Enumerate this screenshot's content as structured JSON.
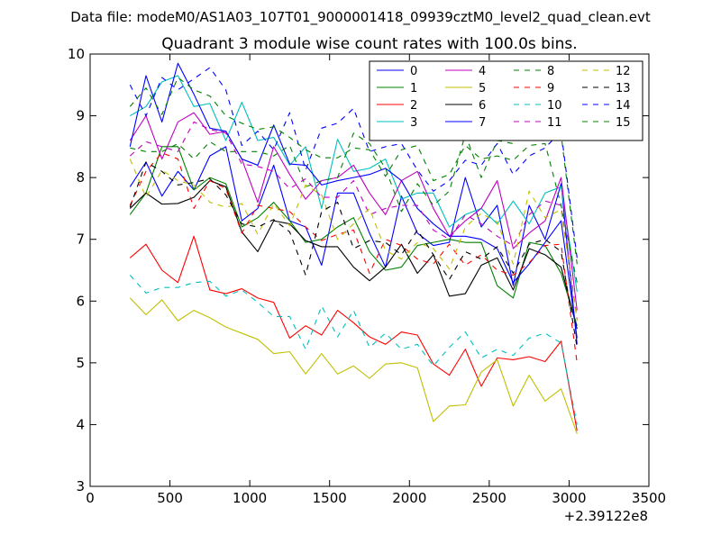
{
  "suptitle": "Data file: modeM0/AS1A03_107T01_9000001418_09939cztM0_level2_quad_clean.evt",
  "chart_data": {
    "type": "line",
    "title": "Quadrant 3 module wise count rates with 100.0s bins.",
    "xlabel": "",
    "ylabel": "",
    "x_offset_label": "+2.39122e8",
    "xlim": [
      0,
      3500
    ],
    "ylim": [
      3,
      10
    ],
    "xticks": [
      0,
      500,
      1000,
      1500,
      2000,
      2500,
      3000,
      3500
    ],
    "yticks": [
      3,
      4,
      5,
      6,
      7,
      8,
      9,
      10
    ],
    "legend_position": "top-right",
    "legend_columns": 4,
    "x": [
      250,
      350,
      450,
      550,
      650,
      750,
      850,
      950,
      1050,
      1150,
      1250,
      1350,
      1450,
      1550,
      1650,
      1750,
      1850,
      1950,
      2050,
      2150,
      2250,
      2350,
      2450,
      2550,
      2650,
      2750,
      2850,
      2950,
      3050
    ],
    "series": [
      {
        "name": "0",
        "color": "#0000ff",
        "style": "solid",
        "values": [
          7.85,
          8.25,
          7.7,
          8.1,
          7.8,
          8.35,
          8.5,
          7.3,
          7.5,
          8.2,
          7.3,
          7.2,
          6.58,
          7.75,
          7.75,
          7.1,
          6.55,
          7.7,
          7.1,
          6.9,
          6.95,
          8.0,
          7.2,
          7.55,
          6.25,
          7.55,
          7.0,
          7.9,
          5.3
        ]
      },
      {
        "name": "1",
        "color": "#008000",
        "style": "solid",
        "values": [
          7.4,
          7.75,
          8.5,
          8.5,
          7.8,
          8.0,
          7.9,
          7.2,
          7.35,
          7.6,
          7.3,
          6.95,
          7.0,
          7.2,
          7.35,
          6.8,
          6.5,
          6.55,
          6.9,
          6.95,
          7.0,
          6.95,
          6.95,
          6.25,
          6.05,
          6.95,
          6.9,
          6.45,
          5.6
        ]
      },
      {
        "name": "2",
        "color": "#ff0000",
        "style": "solid",
        "values": [
          6.7,
          6.92,
          6.5,
          6.3,
          7.05,
          6.18,
          6.12,
          6.2,
          6.05,
          5.98,
          5.4,
          5.6,
          5.45,
          5.85,
          5.65,
          5.42,
          5.3,
          5.5,
          5.45,
          4.98,
          4.8,
          5.22,
          4.62,
          5.08,
          5.05,
          5.1,
          5.02,
          5.35,
          3.9
        ]
      },
      {
        "name": "3",
        "color": "#00bfbf",
        "style": "solid",
        "values": [
          9.0,
          9.15,
          9.55,
          9.65,
          9.15,
          9.2,
          8.6,
          9.22,
          8.6,
          8.65,
          8.2,
          8.5,
          7.5,
          8.62,
          8.1,
          8.15,
          8.3,
          7.65,
          7.75,
          7.75,
          7.2,
          7.4,
          7.5,
          7.25,
          7.62,
          7.25,
          7.75,
          7.85,
          6.15
        ]
      },
      {
        "name": "4",
        "color": "#bf00bf",
        "style": "solid",
        "values": [
          8.6,
          9.0,
          8.3,
          8.9,
          9.05,
          8.7,
          8.75,
          8.3,
          7.6,
          8.5,
          8.05,
          7.65,
          7.95,
          8.0,
          8.2,
          7.75,
          7.4,
          7.95,
          8.1,
          7.5,
          7.05,
          7.3,
          7.5,
          7.95,
          6.85,
          7.1,
          7.3,
          8.0,
          5.85
        ]
      },
      {
        "name": "5",
        "color": "#bfbf00",
        "style": "solid",
        "values": [
          6.05,
          5.78,
          6.02,
          5.68,
          5.85,
          5.73,
          5.58,
          5.48,
          5.38,
          5.15,
          5.18,
          4.82,
          5.15,
          4.82,
          4.95,
          4.75,
          4.98,
          5.0,
          4.92,
          4.05,
          4.3,
          4.32,
          4.85,
          5.05,
          4.3,
          4.8,
          4.38,
          4.58,
          3.85
        ]
      },
      {
        "name": "6",
        "color": "#000000",
        "style": "solid",
        "values": [
          7.5,
          7.75,
          7.57,
          7.58,
          7.68,
          7.95,
          7.85,
          7.12,
          6.8,
          7.3,
          7.25,
          6.98,
          6.88,
          6.88,
          6.55,
          6.33,
          6.55,
          6.92,
          6.45,
          6.75,
          6.08,
          6.12,
          6.58,
          6.7,
          6.18,
          6.85,
          6.75,
          6.55,
          5.55
        ]
      },
      {
        "name": "7",
        "color": "#0000ff",
        "style": "solid",
        "values": [
          8.5,
          9.65,
          8.9,
          9.85,
          9.35,
          8.8,
          8.75,
          8.3,
          8.2,
          8.85,
          8.22,
          8.2,
          7.88,
          7.95,
          8.0,
          8.05,
          8.15,
          7.95,
          7.5,
          7.25,
          7.05,
          7.05,
          7.0,
          6.85,
          6.3,
          6.6,
          6.95,
          7.3,
          5.4
        ]
      },
      {
        "name": "8",
        "color": "#008000",
        "style": "dashed",
        "values": [
          8.48,
          8.42,
          8.42,
          8.55,
          8.3,
          8.58,
          8.42,
          8.42,
          8.42,
          8.35,
          8.52,
          7.85,
          7.95,
          8.0,
          8.72,
          8.55,
          8.15,
          7.45,
          7.9,
          7.55,
          7.78,
          8.7,
          8.0,
          8.6,
          8.55,
          8.95,
          8.6,
          8.7,
          6.6
        ]
      },
      {
        "name": "9",
        "color": "#ff0000",
        "style": "dashed",
        "values": [
          7.55,
          8.1,
          8.4,
          8.3,
          7.5,
          7.95,
          7.82,
          7.1,
          7.55,
          7.5,
          7.45,
          7.2,
          6.98,
          7.08,
          7.15,
          6.45,
          7.0,
          6.9,
          6.68,
          6.6,
          6.92,
          6.58,
          6.75,
          6.5,
          6.42,
          6.62,
          6.9,
          6.92,
          5.0
        ]
      },
      {
        "name": "10",
        "color": "#00bfbf",
        "style": "dashed",
        "values": [
          6.42,
          6.13,
          6.22,
          6.22,
          6.3,
          6.32,
          6.08,
          6.18,
          5.98,
          5.75,
          5.75,
          5.22,
          5.92,
          5.42,
          5.85,
          5.25,
          5.48,
          5.22,
          5.3,
          4.95,
          5.25,
          5.5,
          5.08,
          5.22,
          5.12,
          5.4,
          5.48,
          5.32,
          4.0
        ]
      },
      {
        "name": "11",
        "color": "#bf00bf",
        "style": "dashed",
        "values": [
          8.35,
          8.58,
          8.5,
          8.42,
          8.9,
          8.78,
          8.72,
          8.22,
          8.18,
          8.1,
          7.82,
          7.98,
          7.68,
          7.68,
          7.95,
          7.4,
          7.5,
          7.55,
          7.55,
          7.15,
          7.0,
          7.4,
          7.25,
          7.05,
          6.9,
          7.4,
          7.62,
          7.55,
          5.7
        ]
      },
      {
        "name": "12",
        "color": "#bfbf00",
        "style": "dashed",
        "values": [
          8.3,
          7.68,
          8.12,
          7.95,
          7.88,
          7.6,
          7.52,
          7.58,
          7.08,
          7.58,
          7.22,
          7.88,
          7.72,
          7.0,
          7.25,
          7.5,
          6.82,
          6.68,
          6.95,
          6.85,
          6.52,
          7.2,
          7.42,
          7.28,
          6.6,
          7.78,
          7.35,
          7.48,
          5.68
        ]
      },
      {
        "name": "13",
        "color": "#000000",
        "style": "dashed",
        "values": [
          7.52,
          8.25,
          8.1,
          7.88,
          7.92,
          7.98,
          7.72,
          7.25,
          7.2,
          7.32,
          7.12,
          6.42,
          7.45,
          7.6,
          6.85,
          6.98,
          6.95,
          6.75,
          7.15,
          6.75,
          6.35,
          6.8,
          6.68,
          6.88,
          6.45,
          6.92,
          7.0,
          6.8,
          5.25
        ]
      },
      {
        "name": "14",
        "color": "#0000ff",
        "style": "dashed",
        "values": [
          9.5,
          9.0,
          9.62,
          9.42,
          9.6,
          9.78,
          9.42,
          8.52,
          8.75,
          8.45,
          9.05,
          8.12,
          8.8,
          8.88,
          9.12,
          8.42,
          8.5,
          8.55,
          8.12,
          7.78,
          7.95,
          8.28,
          8.2,
          8.55,
          8.05,
          8.35,
          8.48,
          8.75,
          6.7
        ]
      },
      {
        "name": "15",
        "color": "#008000",
        "style": "dashed",
        "values": [
          9.15,
          9.45,
          9.02,
          9.62,
          9.42,
          9.32,
          9.0,
          8.88,
          8.78,
          8.82,
          8.65,
          8.45,
          8.32,
          8.32,
          8.48,
          8.45,
          8.02,
          8.45,
          8.52,
          7.95,
          8.05,
          8.52,
          8.3,
          8.35,
          8.28,
          8.52,
          8.55,
          7.55,
          6.3
        ]
      }
    ]
  }
}
